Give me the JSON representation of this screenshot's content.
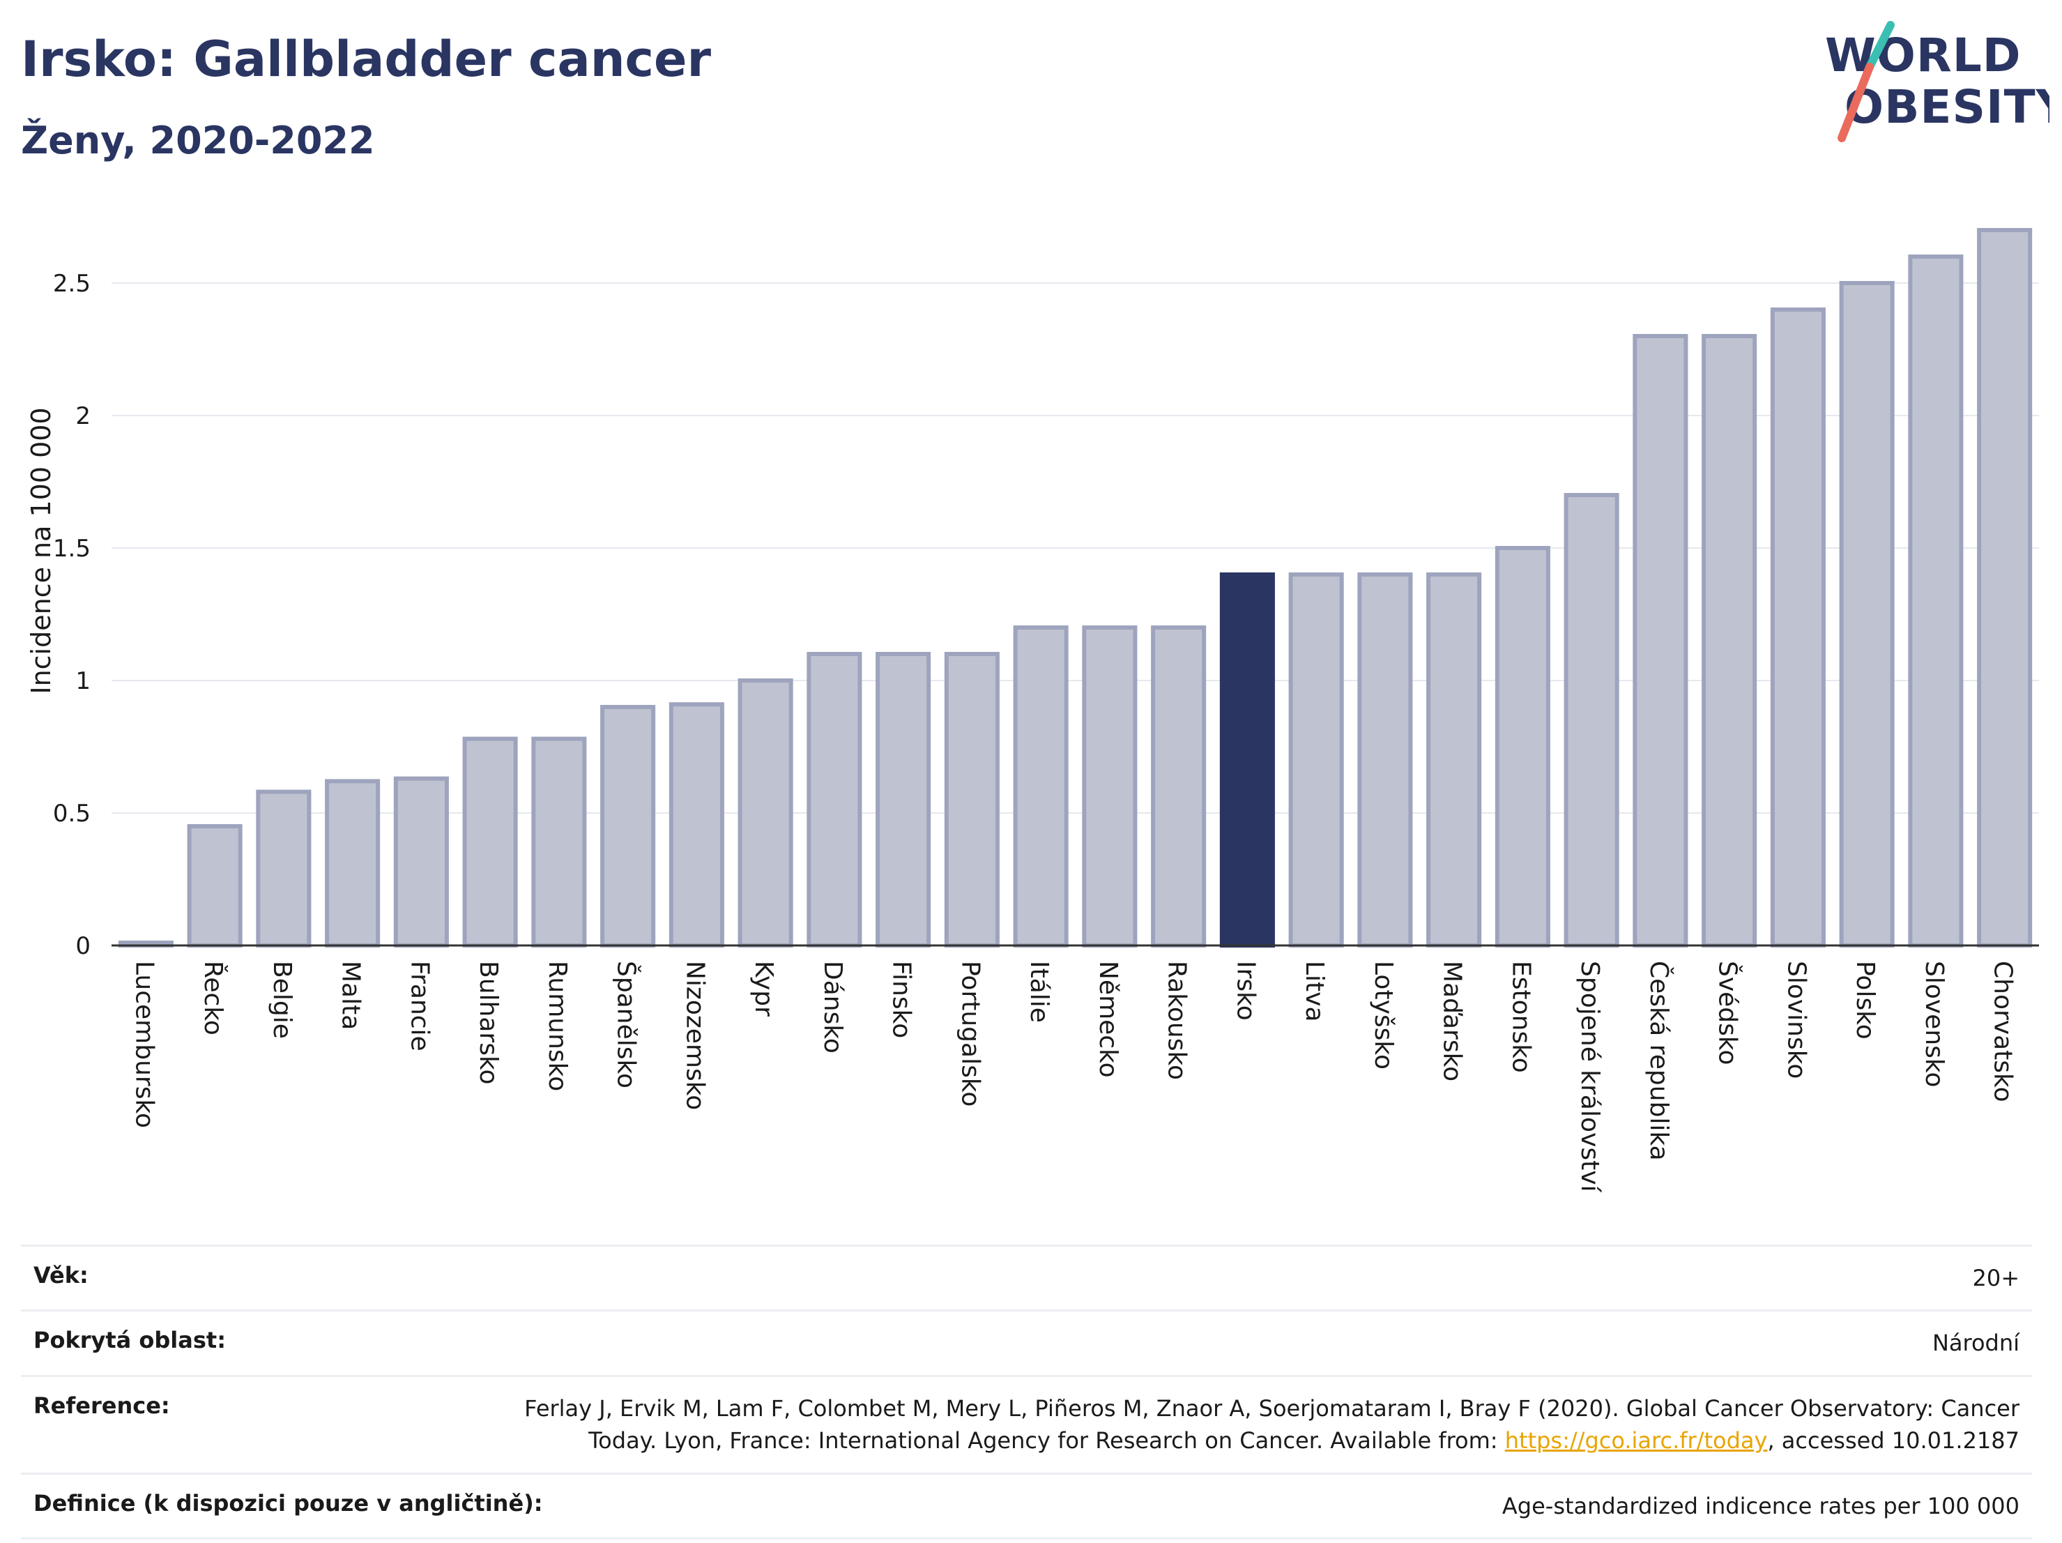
{
  "header": {
    "title": "Irsko: Gallbladder cancer",
    "subtitle": "Ženy, 2020-2022"
  },
  "logo": {
    "line1": "WORLD",
    "line2": "OBESITY"
  },
  "colors": {
    "bar": "#bfc3d1",
    "bar_stroke": "#9ea4bd",
    "highlight": "#2a3562",
    "grid": "#e6e8ee",
    "axis": "#333333",
    "text": "#2a3562",
    "logo_teal": "#3bbfb2",
    "logo_red": "#ea6a5c"
  },
  "chart_data": {
    "type": "bar",
    "ylabel": "Incidence na 100 000",
    "xlabel": "",
    "ylim": [
      0,
      2.75
    ],
    "yticks": [
      0,
      0.5,
      1,
      1.5,
      2,
      2.5
    ],
    "ytick_labels": [
      "0",
      "0.5",
      "1",
      "1.5",
      "2",
      "2.5"
    ],
    "grid": true,
    "highlight": "Irsko",
    "categories": [
      "Lucembursko",
      "Řecko",
      "Belgie",
      "Malta",
      "Francie",
      "Bulharsko",
      "Rumunsko",
      "Španělsko",
      "Nizozemsko",
      "Kypr",
      "Dánsko",
      "Finsko",
      "Portugalsko",
      "Itálie",
      "Německo",
      "Rakousko",
      "Irsko",
      "Litva",
      "Lotyšsko",
      "Maďarsko",
      "Estonsko",
      "Spojené království",
      "Česká republika",
      "Švédsko",
      "Slovinsko",
      "Polsko",
      "Slovensko",
      "Chorvatsko"
    ],
    "values": [
      0.01,
      0.45,
      0.58,
      0.62,
      0.63,
      0.78,
      0.78,
      0.9,
      0.91,
      1.0,
      1.1,
      1.1,
      1.1,
      1.2,
      1.2,
      1.2,
      1.4,
      1.4,
      1.4,
      1.4,
      1.5,
      1.7,
      2.3,
      2.3,
      2.4,
      2.5,
      2.6,
      2.7
    ]
  },
  "meta": {
    "rows": [
      {
        "label": "Věk:",
        "value": "20+"
      },
      {
        "label": "Pokrytá oblast:",
        "value": "Národní"
      },
      {
        "label": "Reference:",
        "value_line1": "Ferlay J, Ervik M, Lam F, Colombet M, Mery L, Piñeros M, Znaor A, Soerjomataram I, Bray F (2020). Global Cancer Observatory: Cancer",
        "value_line2_pre": "Today. Lyon, France: International Agency for Research on Cancer. Available from: ",
        "link": "https://gco.iarc.fr/today",
        "value_line2_post": ", accessed 10.01.2187"
      },
      {
        "label": "Definice (k dispozici pouze v angličtině):",
        "value": "Age-standardized indicence rates per 100 000"
      }
    ]
  }
}
